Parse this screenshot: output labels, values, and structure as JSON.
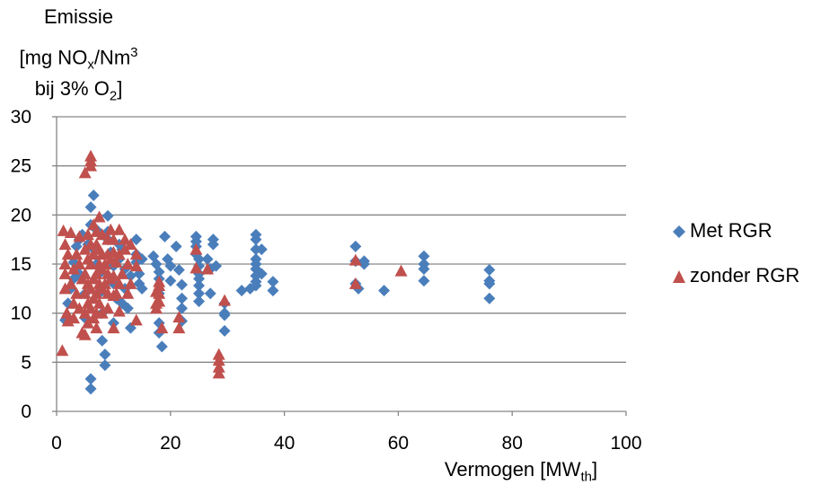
{
  "chart_data": {
    "type": "scatter",
    "title": "",
    "ylabel": {
      "main": "Emissie",
      "line2_pre": "[mg NO",
      "line2_sub": "x",
      "line2_mid": "/Nm",
      "line2_sup": "3",
      "line3_pre": "bij 3% O",
      "line3_sub": "2",
      "line3_post": "]"
    },
    "xlabel": {
      "pre": "Vermogen [MW",
      "sub": "th",
      "post": "]"
    },
    "xlim": [
      0,
      100
    ],
    "ylim": [
      0,
      30
    ],
    "xticks": [
      "0",
      "20",
      "40",
      "60",
      "80",
      "100"
    ],
    "yticks": [
      "0",
      "5",
      "10",
      "15",
      "20",
      "25",
      "30"
    ],
    "grid": "horizontal",
    "legend_position": "right",
    "series": [
      {
        "name": "Met RGR",
        "marker": "diamond",
        "color": "#4a7ebb",
        "points": [
          [
            1.5,
            9.3
          ],
          [
            2,
            11
          ],
          [
            2.5,
            12.5
          ],
          [
            3,
            13.5
          ],
          [
            3,
            15.2
          ],
          [
            3.5,
            16.8
          ],
          [
            4,
            17.5
          ],
          [
            4,
            14
          ],
          [
            4.5,
            18
          ],
          [
            5,
            12
          ],
          [
            5,
            9.5
          ],
          [
            5.5,
            17
          ],
          [
            6,
            20.8
          ],
          [
            6,
            19
          ],
          [
            6.5,
            22
          ],
          [
            6.5,
            16.5
          ],
          [
            7,
            18.5
          ],
          [
            7,
            15
          ],
          [
            7.5,
            14
          ],
          [
            7.5,
            12
          ],
          [
            8,
            10
          ],
          [
            8,
            7.2
          ],
          [
            8.5,
            5.8
          ],
          [
            8.5,
            4.7
          ],
          [
            9,
            19.9
          ],
          [
            9,
            17.5
          ],
          [
            9.5,
            16.2
          ],
          [
            10,
            14.8
          ],
          [
            10,
            13
          ],
          [
            10.5,
            11.5
          ],
          [
            11,
            17
          ],
          [
            11,
            15.5
          ],
          [
            11.5,
            16.5
          ],
          [
            12,
            14.5
          ],
          [
            12,
            12.5
          ],
          [
            12.5,
            10.5
          ],
          [
            13,
            8.5
          ],
          [
            13,
            13.8
          ],
          [
            14,
            17.5
          ],
          [
            14,
            16
          ],
          [
            14,
            15.2
          ],
          [
            14.5,
            14
          ],
          [
            14.5,
            13
          ],
          [
            15,
            12.5
          ],
          [
            15,
            15.5
          ],
          [
            6,
            3.3
          ],
          [
            6,
            2.3
          ],
          [
            9,
            18.3
          ],
          [
            10,
            9
          ],
          [
            11.5,
            11
          ],
          [
            17,
            15.8
          ],
          [
            17.5,
            15
          ],
          [
            18,
            14.2
          ],
          [
            18,
            13.5
          ],
          [
            18,
            12
          ],
          [
            18,
            9
          ],
          [
            18,
            8
          ],
          [
            18.5,
            6.6
          ],
          [
            19,
            17.8
          ],
          [
            19.5,
            15.5
          ],
          [
            20,
            14.8
          ],
          [
            20,
            13.3
          ],
          [
            21,
            16.8
          ],
          [
            21.5,
            14.4
          ],
          [
            22,
            12.9
          ],
          [
            22,
            11.5
          ],
          [
            22,
            10.5
          ],
          [
            22,
            9.2
          ],
          [
            24.5,
            17.8
          ],
          [
            24.5,
            17.3
          ],
          [
            24.5,
            16.8
          ],
          [
            24.5,
            16
          ],
          [
            25,
            15.5
          ],
          [
            25,
            14.8
          ],
          [
            25,
            14
          ],
          [
            25,
            13.5
          ],
          [
            25,
            12.8
          ],
          [
            25,
            12
          ],
          [
            25,
            11.2
          ],
          [
            26.5,
            15.5
          ],
          [
            27,
            14.5
          ],
          [
            27,
            12
          ],
          [
            27.5,
            17.5
          ],
          [
            27.5,
            17
          ],
          [
            28,
            14.8
          ],
          [
            29.5,
            11
          ],
          [
            29.5,
            10
          ],
          [
            29.5,
            9.8
          ],
          [
            29.5,
            8.2
          ],
          [
            32.5,
            12.3
          ],
          [
            34,
            12.5
          ],
          [
            35,
            18
          ],
          [
            35,
            17.5
          ],
          [
            35,
            16.5
          ],
          [
            35,
            15.5
          ],
          [
            35,
            15
          ],
          [
            35,
            14.5
          ],
          [
            35,
            13.8
          ],
          [
            35,
            13.2
          ],
          [
            35,
            12.8
          ],
          [
            36,
            16.5
          ],
          [
            36,
            14
          ],
          [
            38,
            13.2
          ],
          [
            38,
            12.3
          ],
          [
            52.5,
            16.8
          ],
          [
            52.5,
            15.3
          ],
          [
            52.5,
            13
          ],
          [
            53,
            12.5
          ],
          [
            54,
            15.3
          ],
          [
            54,
            15
          ],
          [
            57.5,
            12.3
          ],
          [
            64.5,
            15.8
          ],
          [
            64.5,
            15
          ],
          [
            64.5,
            14.5
          ],
          [
            64.5,
            13.3
          ],
          [
            76,
            14.4
          ],
          [
            76,
            13.3
          ],
          [
            76,
            13
          ],
          [
            76,
            11.5
          ]
        ]
      },
      {
        "name": "zonder RGR",
        "marker": "triangle",
        "color": "#c0504d",
        "points": [
          [
            1,
            6.2
          ],
          [
            1.2,
            18.4
          ],
          [
            1.5,
            17
          ],
          [
            1.5,
            15
          ],
          [
            1.5,
            14
          ],
          [
            1.5,
            12.5
          ],
          [
            1.8,
            10
          ],
          [
            2,
            9.2
          ],
          [
            2,
            16
          ],
          [
            2.5,
            18.2
          ],
          [
            2.5,
            13
          ],
          [
            3,
            14.5
          ],
          [
            3,
            11
          ],
          [
            3,
            9.5
          ],
          [
            3.5,
            16
          ],
          [
            3.5,
            12
          ],
          [
            4,
            17.8
          ],
          [
            4,
            15
          ],
          [
            4,
            10.5
          ],
          [
            4.5,
            13.5
          ],
          [
            4.5,
            8
          ],
          [
            5,
            24.3
          ],
          [
            5,
            16.5
          ],
          [
            5,
            14
          ],
          [
            5,
            12
          ],
          [
            5,
            10
          ],
          [
            5,
            7.8
          ],
          [
            5.5,
            18
          ],
          [
            5.5,
            15.5
          ],
          [
            5.5,
            13
          ],
          [
            5.5,
            11
          ],
          [
            5.5,
            9
          ],
          [
            6,
            25.5
          ],
          [
            6,
            25
          ],
          [
            6,
            26
          ],
          [
            6,
            17
          ],
          [
            6,
            15
          ],
          [
            6,
            12.5
          ],
          [
            6,
            10.5
          ],
          [
            6.5,
            19
          ],
          [
            6.5,
            16
          ],
          [
            6.5,
            13.5
          ],
          [
            6.5,
            11.5
          ],
          [
            6.5,
            9.5
          ],
          [
            7,
            18.3
          ],
          [
            7,
            17
          ],
          [
            7,
            14
          ],
          [
            7,
            12
          ],
          [
            7,
            10
          ],
          [
            7,
            8.5
          ],
          [
            7.5,
            19.8
          ],
          [
            7.5,
            16.5
          ],
          [
            7.5,
            15
          ],
          [
            7.5,
            13
          ],
          [
            7.5,
            11
          ],
          [
            8,
            18
          ],
          [
            8,
            16
          ],
          [
            8,
            14.5
          ],
          [
            8,
            12.5
          ],
          [
            8,
            10
          ],
          [
            8.5,
            15
          ],
          [
            8.5,
            13
          ],
          [
            9,
            17.5
          ],
          [
            9,
            16
          ],
          [
            9,
            14
          ],
          [
            9,
            12
          ],
          [
            9,
            10.5
          ],
          [
            9.5,
            18.5
          ],
          [
            9.5,
            15.5
          ],
          [
            9.5,
            13.5
          ],
          [
            10,
            17.5
          ],
          [
            10,
            16.2
          ],
          [
            10,
            13.8
          ],
          [
            10,
            11.8
          ],
          [
            10,
            8.5
          ],
          [
            10.5,
            15.2
          ],
          [
            10.5,
            12
          ],
          [
            11,
            18.5
          ],
          [
            11,
            16
          ],
          [
            11,
            13
          ],
          [
            11,
            10.2
          ],
          [
            11.5,
            14
          ],
          [
            12,
            17.5
          ],
          [
            12,
            16.5
          ],
          [
            12.5,
            15
          ],
          [
            12.5,
            12
          ],
          [
            13,
            17
          ],
          [
            13,
            13
          ],
          [
            14,
            16
          ],
          [
            14,
            14.8
          ],
          [
            14,
            9.3
          ],
          [
            17.5,
            10.5
          ],
          [
            17.5,
            11
          ],
          [
            17.5,
            12.2
          ],
          [
            18,
            12.8
          ],
          [
            18,
            12
          ],
          [
            18,
            11.2
          ],
          [
            18,
            13.2
          ],
          [
            18.5,
            8.5
          ],
          [
            21.5,
            8.5
          ],
          [
            21.5,
            9.6
          ],
          [
            24.5,
            14.6
          ],
          [
            24.5,
            16.5
          ],
          [
            26.5,
            14.5
          ],
          [
            28.5,
            5.8
          ],
          [
            28.5,
            5.2
          ],
          [
            28.5,
            4.5
          ],
          [
            28.5,
            3.9
          ],
          [
            29.5,
            11.3
          ],
          [
            52.5,
            15.4
          ],
          [
            52.5,
            13
          ],
          [
            60.5,
            14.3
          ]
        ]
      }
    ]
  }
}
